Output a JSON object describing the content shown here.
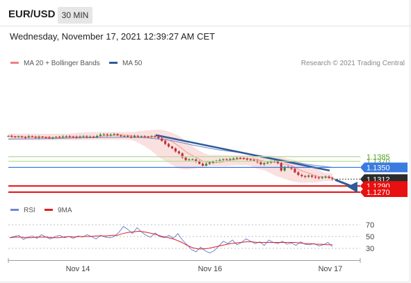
{
  "header": {
    "symbol": "EUR/USD",
    "timeframe": "30 MIN"
  },
  "timestamp": "Wednesday, November 17, 2021 12:39:27 AM CET",
  "copyright": "Research © 2021 Trading Central",
  "colors": {
    "ma20": "#f08080",
    "ma50": "#2e5b9a",
    "bollinger_fill": "#f7c6c6",
    "support_green": "#5aa02c",
    "blue_level": "#3a7be0",
    "red_level": "#e81010",
    "current_price": "#2b2b2b",
    "candle_up": "#3a8a3a",
    "candle_down": "#c23434",
    "rsi": "#6d87d8",
    "rsi_ma": "#e02020"
  },
  "chart_data": [
    {
      "type": "line",
      "title": "EUR/USD 30 MIN",
      "legend": [
        {
          "name": "MA 20 + Bollinger Bands",
          "color": "#f08080"
        },
        {
          "name": "MA 50",
          "color": "#2e5b9a"
        }
      ],
      "x_ticks": [
        "Nov 14",
        "Nov 16",
        "Nov 17"
      ],
      "ylim": [
        1.126,
        1.148
      ],
      "price_series": [
        1.1452,
        1.145,
        1.1449,
        1.145,
        1.1448,
        1.1447,
        1.1451,
        1.1449,
        1.1446,
        1.145,
        1.1448,
        1.1447,
        1.1445,
        1.1447,
        1.1449,
        1.1448,
        1.145,
        1.1451,
        1.145,
        1.1449,
        1.1448,
        1.145,
        1.1451,
        1.1449,
        1.1449,
        1.1448,
        1.1452,
        1.1456,
        1.1457,
        1.1455,
        1.1456,
        1.1458,
        1.1454,
        1.1451,
        1.1452,
        1.145,
        1.1448,
        1.1452,
        1.145,
        1.1451,
        1.145,
        1.1448,
        1.1451,
        1.1449,
        1.1444,
        1.1436,
        1.1426,
        1.1418,
        1.1412,
        1.1402,
        1.1396,
        1.1382,
        1.1374,
        1.1376,
        1.1376,
        1.137,
        1.1362,
        1.1356,
        1.1362,
        1.1366,
        1.137,
        1.1372,
        1.1374,
        1.1377,
        1.1376,
        1.1378,
        1.1379,
        1.1381,
        1.138,
        1.1378,
        1.1376,
        1.1374,
        1.1372,
        1.1367,
        1.136,
        1.1364,
        1.1366,
        1.1369,
        1.1371,
        1.1364,
        1.134,
        1.1352,
        1.135,
        1.1346,
        1.1334,
        1.1326,
        1.1322,
        1.132,
        1.1324,
        1.132,
        1.1318,
        1.1316,
        1.1318,
        1.132,
        1.1316,
        1.1312
      ],
      "ma50_series": [
        1.1442,
        1.1443,
        1.1444,
        1.1446,
        1.1447,
        1.1448,
        1.1446,
        1.1438,
        1.1422,
        1.1408,
        1.1398,
        1.1386,
        1.1372,
        1.1359,
        1.135
      ],
      "trendline": {
        "from": 1.1455,
        "to": 1.134
      },
      "forecast_arrow": {
        "from": 1.131,
        "to": 1.127
      },
      "levels": [
        {
          "value": 1.1385,
          "label": "1.1385",
          "style": "green-line"
        },
        {
          "value": 1.137,
          "label": "1.1370",
          "style": "green-line"
        },
        {
          "value": 1.135,
          "label": "1.1350",
          "style": "blue-box"
        },
        {
          "value": 1.1312,
          "label": "1.1312",
          "style": "current-price"
        },
        {
          "value": 1.129,
          "label": "1.1290",
          "style": "red-box"
        },
        {
          "value": 1.127,
          "label": "1.1270",
          "style": "red-box"
        }
      ]
    },
    {
      "type": "line",
      "title": "RSI",
      "legend": [
        {
          "name": "RSI",
          "color": "#6d87d8"
        },
        {
          "name": "9MA",
          "color": "#e02020"
        }
      ],
      "y_ticks": [
        70,
        50,
        30
      ],
      "ylim": [
        20,
        80
      ],
      "rsi_series": [
        48,
        50,
        52,
        45,
        49,
        51,
        47,
        53,
        49,
        46,
        50,
        52,
        48,
        50,
        47,
        51,
        49,
        53,
        50,
        46,
        52,
        49,
        48,
        50,
        57,
        67,
        62,
        55,
        65,
        58,
        52,
        49,
        56,
        50,
        48,
        52,
        47,
        55,
        44,
        36,
        28,
        24,
        32,
        26,
        22,
        26,
        34,
        42,
        38,
        44,
        36,
        40,
        46,
        42,
        38,
        41,
        35,
        44,
        40,
        38,
        42,
        37,
        39,
        35,
        41,
        37,
        36,
        38,
        34,
        36,
        40,
        33
      ],
      "ma_series": [
        48,
        49,
        49,
        48,
        48,
        49,
        49,
        49,
        48,
        48,
        49,
        50,
        49,
        50,
        50,
        50,
        51,
        51,
        51,
        52,
        52,
        55,
        57,
        58,
        59,
        58,
        56,
        54,
        51,
        49,
        47,
        44,
        40,
        35,
        31,
        29,
        29,
        30,
        32,
        34,
        36,
        38,
        39,
        40,
        41,
        41,
        40,
        40,
        40,
        40,
        40,
        40,
        40,
        40,
        39,
        38,
        38,
        37,
        37,
        36,
        36
      ]
    }
  ]
}
